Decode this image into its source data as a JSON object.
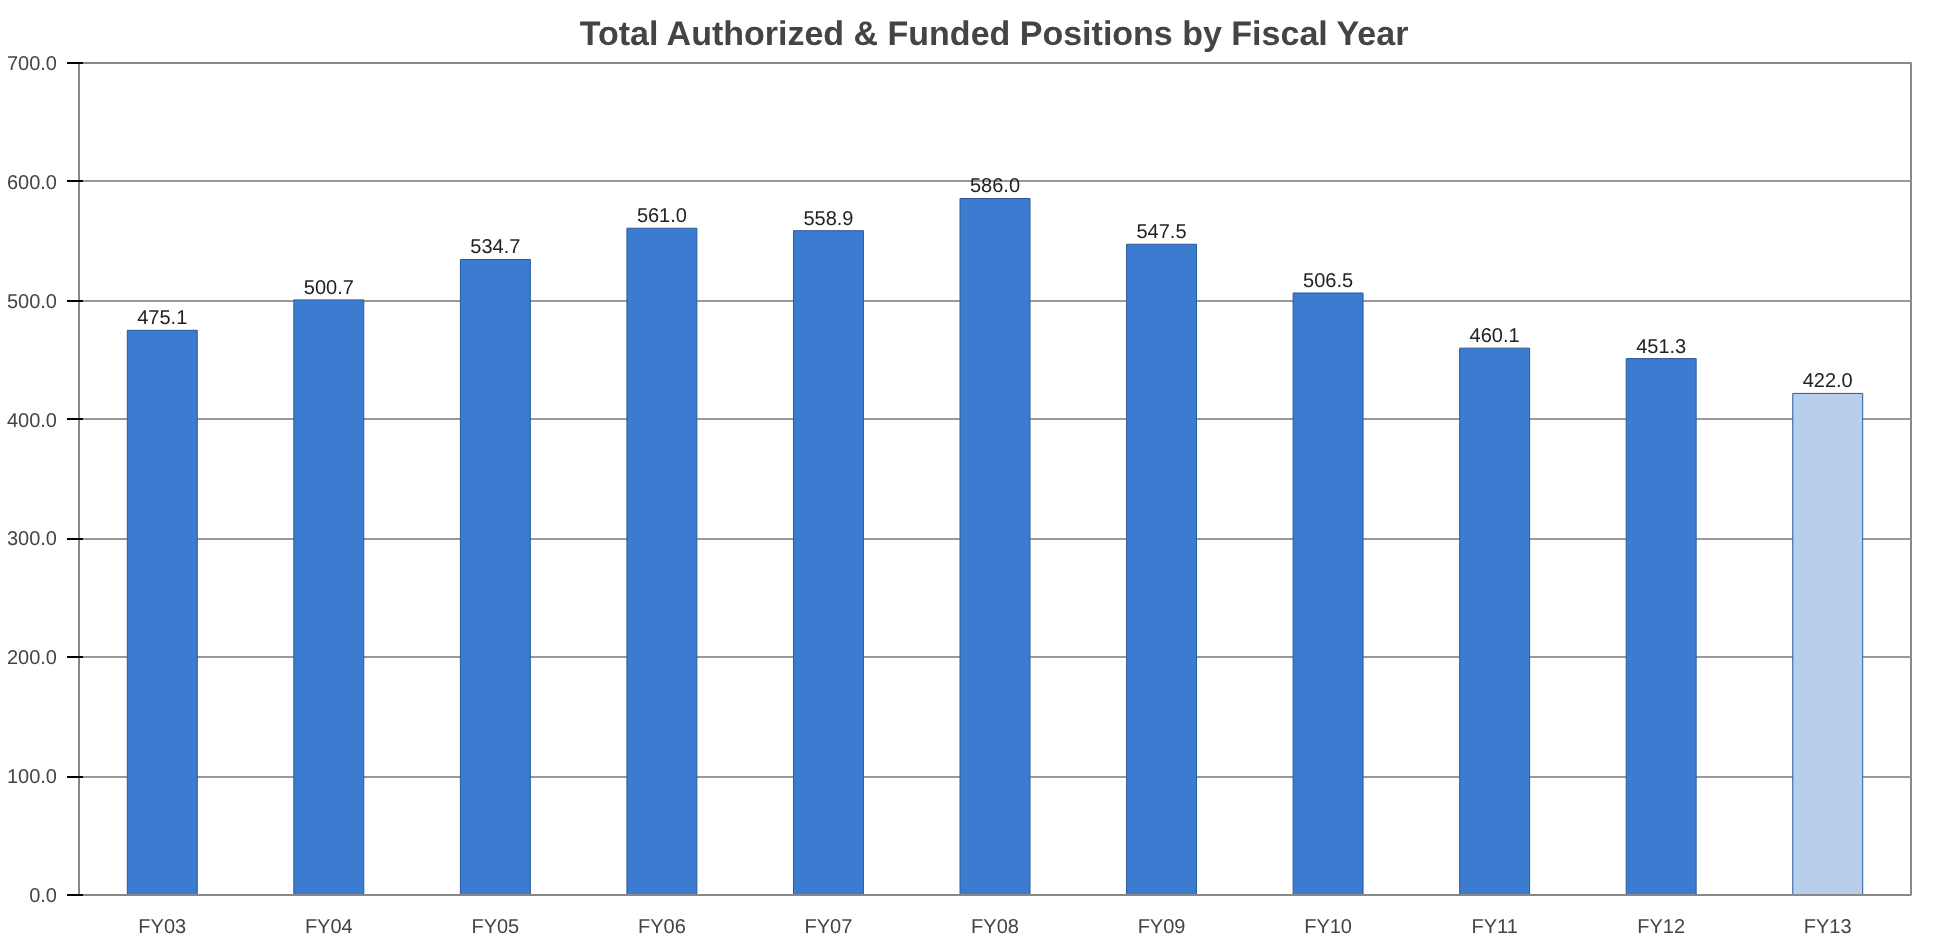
{
  "chart_data": {
    "type": "bar",
    "title": "Total Authorized & Funded Positions by Fiscal Year",
    "categories": [
      "FY03",
      "FY04",
      "FY05",
      "FY06",
      "FY07",
      "FY08",
      "FY09",
      "FY10",
      "FY11",
      "FY12",
      "FY13"
    ],
    "values": [
      475.1,
      500.7,
      534.7,
      561.0,
      558.9,
      586.0,
      547.5,
      506.5,
      460.1,
      451.3,
      422.0
    ],
    "value_labels": [
      "475.1",
      "500.7",
      "534.7",
      "561.0",
      "558.9",
      "586.0",
      "547.5",
      "506.5",
      "460.1",
      "451.3",
      "422.0"
    ],
    "colors": [
      "#3b7bd0",
      "#3b7bd0",
      "#3b7bd0",
      "#3b7bd0",
      "#3b7bd0",
      "#3b7bd0",
      "#3b7bd0",
      "#3b7bd0",
      "#3b7bd0",
      "#3b7bd0",
      "#b7cfec"
    ],
    "ylim": [
      0,
      700
    ],
    "yticks": [
      {
        "value": 0,
        "label": "0.0"
      },
      {
        "value": 100,
        "label": "100.0"
      },
      {
        "value": 200,
        "label": "200.0"
      },
      {
        "value": 300,
        "label": "300.0"
      },
      {
        "value": 400,
        "label": "400.0"
      },
      {
        "value": 500,
        "label": "500.0"
      },
      {
        "value": 600,
        "label": "600.0"
      },
      {
        "value": 700,
        "label": "700.0"
      }
    ],
    "grid": "y"
  }
}
